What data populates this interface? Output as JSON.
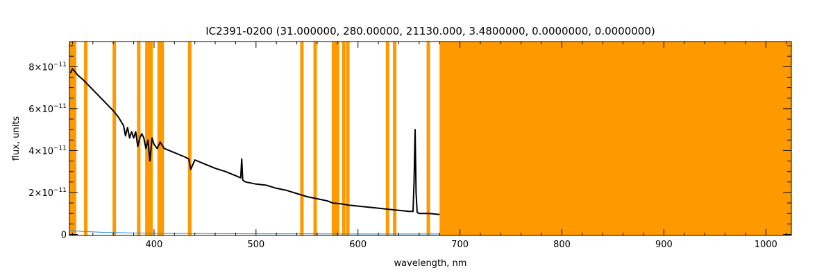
{
  "chart_data": {
    "type": "line",
    "title": "IC2391-0200    (31.000000, 280.00000, 21130.000, 3.4800000, 0.0000000, 0.0000000)",
    "xlabel": "wavelength, nm",
    "ylabel": "flux, units",
    "xlim": [
      317,
      1025
    ],
    "ylim": [
      -5e-13,
      9.2e-11
    ],
    "x_ticks": [
      {
        "value": 400,
        "label": "400"
      },
      {
        "value": 500,
        "label": "500"
      },
      {
        "value": 600,
        "label": "600"
      },
      {
        "value": 700,
        "label": "700"
      },
      {
        "value": 800,
        "label": "800"
      },
      {
        "value": 900,
        "label": "900"
      },
      {
        "value": 1000,
        "label": "1000"
      }
    ],
    "y_ticks": [
      {
        "value": 0,
        "mantissa": "0",
        "exp": ""
      },
      {
        "value": 2e-11,
        "mantissa": "2×10",
        "exp": "−11"
      },
      {
        "value": 4e-11,
        "mantissa": "4×10",
        "exp": "−11"
      },
      {
        "value": 6e-11,
        "mantissa": "6×10",
        "exp": "−11"
      },
      {
        "value": 8e-11,
        "mantissa": "8×10",
        "exp": "−11"
      }
    ],
    "colors": {
      "spectrum": "#000000",
      "error": "#1f8fd6",
      "mask": "#ff9900",
      "axis": "#000000"
    },
    "mask_lines_nm": [
      319,
      320,
      322,
      333,
      361,
      385,
      393,
      395,
      397,
      405,
      408,
      435,
      545,
      558,
      576,
      578,
      580,
      586,
      590,
      629,
      636,
      669
    ],
    "mask_region_nm": [
      680,
      1025
    ],
    "series": [
      {
        "role": "spectrum",
        "x": [
          318,
          320,
          322,
          325,
          330,
          340,
          350,
          360,
          365,
          370,
          372,
          374,
          376,
          378,
          380,
          382,
          384,
          386,
          388,
          390,
          392,
          394,
          396,
          398,
          400,
          403,
          406,
          410,
          415,
          420,
          425,
          430,
          434,
          436,
          440,
          450,
          460,
          470,
          480,
          485,
          486,
          487,
          488,
          490,
          500,
          510,
          520,
          530,
          540,
          550,
          560,
          570,
          575,
          585,
          590,
          600,
          610,
          620,
          630,
          640,
          650,
          654,
          655,
          656,
          657,
          658,
          660,
          670,
          680
        ],
        "y": [
          7.7e-11,
          7.9e-11,
          7.8e-11,
          7.6e-11,
          7.4e-11,
          6.9e-11,
          6.4e-11,
          5.9e-11,
          5.6e-11,
          5.2e-11,
          4.7e-11,
          5.1e-11,
          4.6e-11,
          4.9e-11,
          4.6e-11,
          4.9e-11,
          4.2e-11,
          4.6e-11,
          4.8e-11,
          4.6e-11,
          4.1e-11,
          4.5e-11,
          3.5e-11,
          4.6e-11,
          4.3e-11,
          4.1e-11,
          4.4e-11,
          4.1e-11,
          4e-11,
          3.9e-11,
          3.8e-11,
          3.7e-11,
          3.6e-11,
          3.1e-11,
          3.55e-11,
          3.35e-11,
          3.15e-11,
          3e-11,
          2.8e-11,
          2.7e-11,
          3.6e-11,
          2.6e-11,
          2.55e-11,
          2.5e-11,
          2.4e-11,
          2.35e-11,
          2.2e-11,
          2.1e-11,
          1.95e-11,
          1.8e-11,
          1.7e-11,
          1.6e-11,
          1.5e-11,
          1.45e-11,
          1.4e-11,
          1.35e-11,
          1.3e-11,
          1.25e-11,
          1.2e-11,
          1.15e-11,
          1.1e-11,
          1.1e-11,
          2.5e-11,
          5e-11,
          2e-11,
          1.05e-11,
          1e-11,
          1e-11,
          9.5e-12
        ]
      },
      {
        "role": "error",
        "x": [
          318,
          330,
          350,
          380,
          400,
          450,
          500,
          550,
          600,
          650,
          680
        ],
        "y": [
          1.8e-12,
          1.4e-12,
          1e-12,
          7e-13,
          5e-13,
          4e-13,
          3e-13,
          3e-13,
          2e-13,
          2e-13,
          2e-13
        ]
      }
    ],
    "grid": false,
    "legend": "none"
  }
}
